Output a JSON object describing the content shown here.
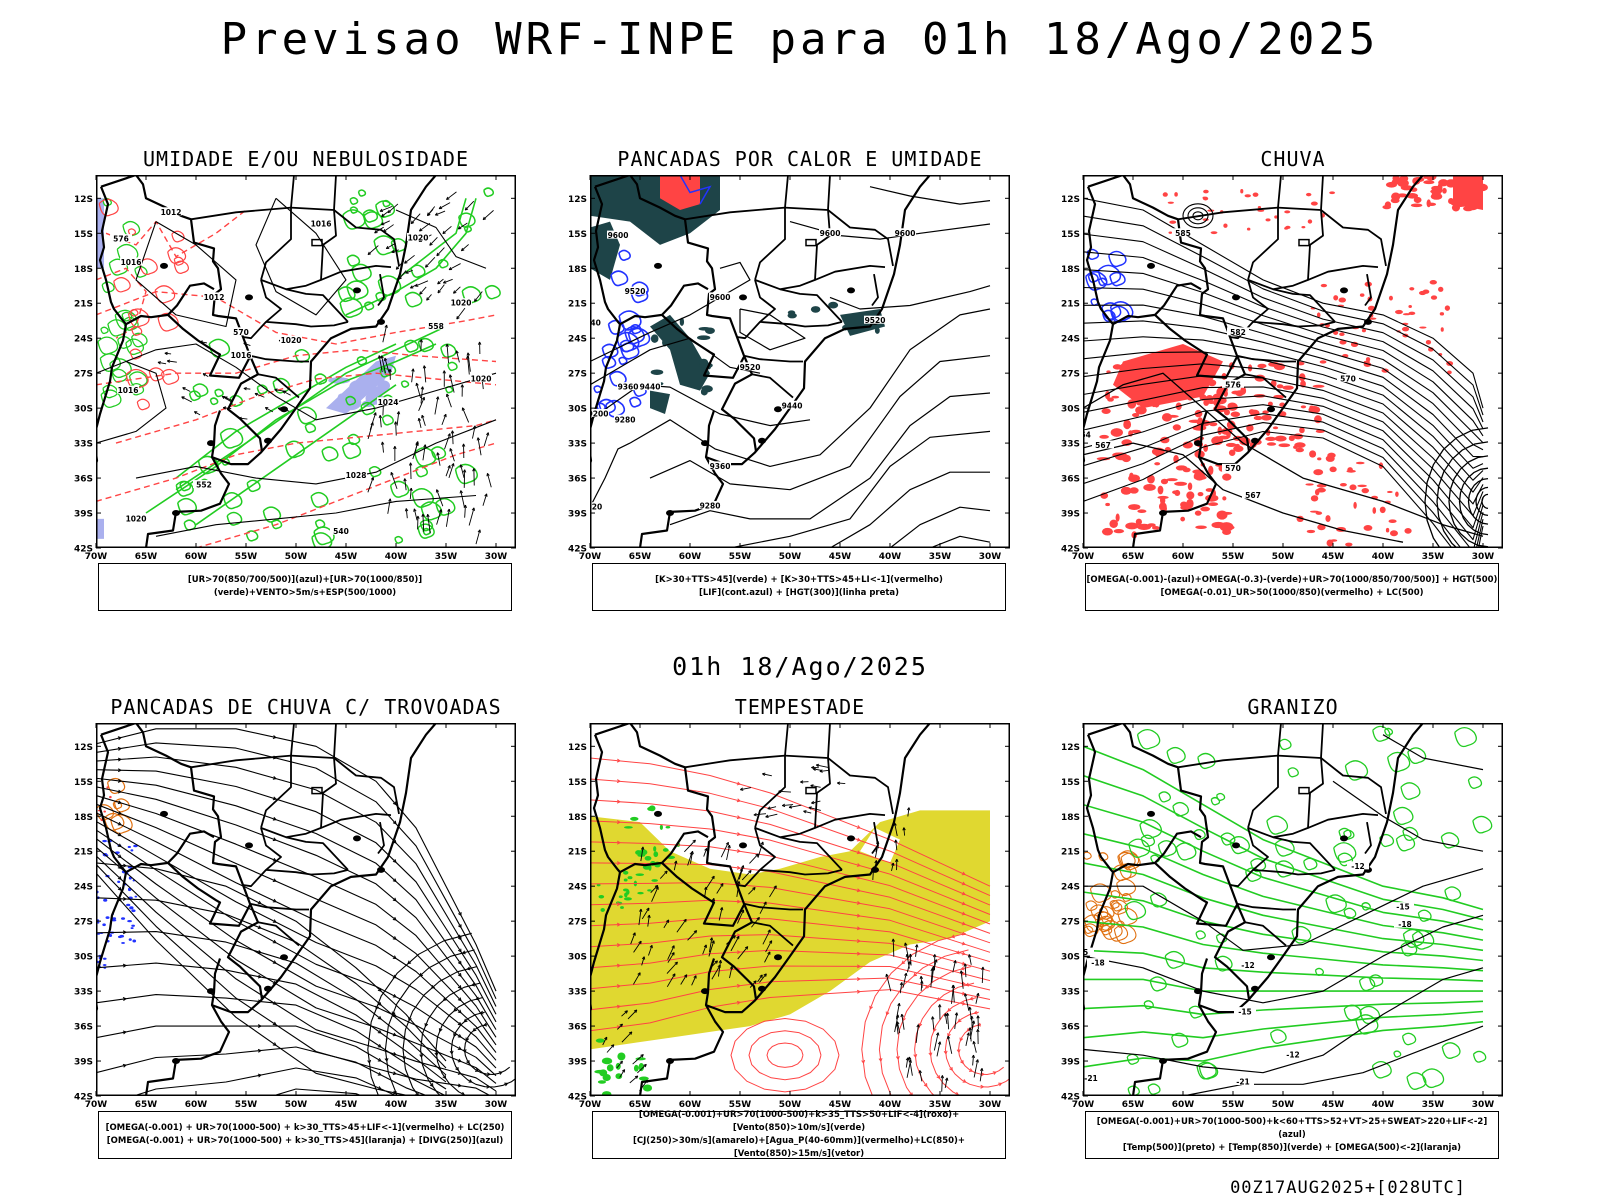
{
  "title": "Previsao WRF-INPE  para 01h 18/Ago/2025",
  "mid_title": "01h 18/Ago/2025",
  "footer": "00Z17AUG2025+[028UTC]",
  "axes": {
    "lat": [
      "12S",
      "15S",
      "18S",
      "21S",
      "24S",
      "27S",
      "30S",
      "33S",
      "36S",
      "39S",
      "42S"
    ],
    "lon": [
      "70W",
      "65W",
      "60W",
      "55W",
      "50W",
      "45W",
      "40W",
      "35W",
      "30W"
    ]
  },
  "colors": {
    "green": "#22cc22",
    "red": "#ff4444",
    "blue": "#2233ff",
    "lavender": "#aab0ee",
    "darkteal": "#1e4448",
    "yellow": "#e0d830",
    "orange": "#e07010"
  },
  "panels": [
    {
      "id": "umidade",
      "title": "UMIDADE E/OU NEBULOSIDADE",
      "legend": [
        "[UR>70(850/700/500)](azul)+[UR>70(1000/850)](verde)+VENTO>5m/s+ESP(500/1000)"
      ],
      "labels": [
        {
          "t": "1012",
          "lon": -62.5,
          "lat": -13.2
        },
        {
          "t": "1016",
          "lon": -47.5,
          "lat": -14.2
        },
        {
          "t": "1020",
          "lon": -37.8,
          "lat": -15.4
        },
        {
          "t": "1016",
          "lon": -66.5,
          "lat": -17.5
        },
        {
          "t": "1012",
          "lon": -58.2,
          "lat": -20.5
        },
        {
          "t": "1020",
          "lon": -33.5,
          "lat": -21.0
        },
        {
          "t": "1016",
          "lon": -55.5,
          "lat": -25.5
        },
        {
          "t": "1020",
          "lon": -50.5,
          "lat": -24.2
        },
        {
          "t": "1024",
          "lon": -40.8,
          "lat": -29.5
        },
        {
          "t": "1016",
          "lon": -66.8,
          "lat": -28.5
        },
        {
          "t": "1028",
          "lon": -44.0,
          "lat": -35.8
        },
        {
          "t": "1020",
          "lon": -66.0,
          "lat": -39.5
        },
        {
          "t": "1020",
          "lon": -31.5,
          "lat": -27.5
        },
        {
          "t": "576",
          "lon": -67.5,
          "lat": -15.5
        },
        {
          "t": "570",
          "lon": -55.5,
          "lat": -23.5
        },
        {
          "t": "558",
          "lon": -36.0,
          "lat": -23.0
        },
        {
          "t": "540",
          "lon": -45.5,
          "lat": -40.6
        },
        {
          "t": "552",
          "lon": -59.2,
          "lat": -36.6
        }
      ]
    },
    {
      "id": "pancadas-calor",
      "title": "PANCADAS POR CALOR E UMIDADE",
      "legend": [
        "[K>30+TTS>45](verde) + [K>30+TTS>45+LI<-1](vermelho)",
        "[LIF](cont.azul) + [HGT(300)](linha preta)"
      ],
      "labels": [
        {
          "t": "9600",
          "lon": -67.2,
          "lat": -15.2
        },
        {
          "t": "9600",
          "lon": -46.0,
          "lat": -15.0
        },
        {
          "t": "9600",
          "lon": -38.5,
          "lat": -15.0
        },
        {
          "t": "9520",
          "lon": -65.5,
          "lat": -20.0
        },
        {
          "t": "9600",
          "lon": -57.0,
          "lat": -20.5
        },
        {
          "t": "9520",
          "lon": -41.5,
          "lat": -22.5
        },
        {
          "t": "9520",
          "lon": -54.0,
          "lat": -26.5
        },
        {
          "t": "9440",
          "lon": -64.0,
          "lat": -28.2
        },
        {
          "t": "9360",
          "lon": -66.2,
          "lat": -28.2
        },
        {
          "t": "9440",
          "lon": -49.8,
          "lat": -29.8
        },
        {
          "t": "9280",
          "lon": -66.5,
          "lat": -31.0
        },
        {
          "t": "9200",
          "lon": -69.2,
          "lat": -30.5
        },
        {
          "t": "9360",
          "lon": -57.0,
          "lat": -35.0
        },
        {
          "t": "9280",
          "lon": -58.0,
          "lat": -38.4
        },
        {
          "t": "20",
          "lon": -69.3,
          "lat": -38.5
        },
        {
          "t": "440",
          "lon": -69.7,
          "lat": -22.7
        }
      ]
    },
    {
      "id": "chuva",
      "title": "CHUVA",
      "legend": [
        "[OMEGA(-0.001)-(azul)+OMEGA(-0.3)-(verde)+UR>70(1000/850/700/500)] + HGT(500)",
        "[OMEGA(-0.01)_UR>50(1000/850)(vermelho) + LC(500)"
      ],
      "labels": [
        {
          "t": "585",
          "lon": -60.0,
          "lat": -15.0
        },
        {
          "t": "582",
          "lon": -54.5,
          "lat": -23.5
        },
        {
          "t": "576",
          "lon": -55.0,
          "lat": -28.0
        },
        {
          "t": "570",
          "lon": -43.5,
          "lat": -27.5
        },
        {
          "t": "570",
          "lon": -55.0,
          "lat": -35.2
        },
        {
          "t": "567",
          "lon": -53.0,
          "lat": -37.5
        },
        {
          "t": "564",
          "lon": -70.0,
          "lat": -32.3
        },
        {
          "t": "567",
          "lon": -68.0,
          "lat": -33.2
        }
      ]
    },
    {
      "id": "pancadas-trovoadas",
      "title": "PANCADAS DE CHUVA C/ TROVOADAS",
      "legend": [
        "[OMEGA(-0.001) + UR>70(1000-500) + k>30_TTS>45+LIF<-1](vermelho) + LC(250)",
        "[OMEGA(-0.001) + UR>70(1000-500) + k>30_TTS>45](laranja) + [DIVG(250)](azul)"
      ],
      "labels": []
    },
    {
      "id": "tempestade",
      "title": "TEMPESTADE",
      "legend": [
        "[OMEGA(-0.001)+UR>70(1000-500)+k>35_TTS>50+LIF<-4](roxo)+[Vento(850)>10m/s](verde)",
        "[CJ(250)>30m/s](amarelo)+[Agua_P(40-60mm)](vermelho)+LC(850)+[Vento(850)>15m/s](vetor)"
      ],
      "labels": []
    },
    {
      "id": "granizo",
      "title": "GRANIZO",
      "legend": [
        "[OMEGA(-0.001)+UR>70(1000-500)+k<60+TTS>52+VT>25+SWEAT>220+LIF<-2](azul)",
        "[Temp(500)](preto) + [Temp(850)](verde) + [OMEGA(500)<-2](laranja)"
      ],
      "labels": [
        {
          "t": "-12",
          "lon": -42.5,
          "lat": -22.3
        },
        {
          "t": "-15",
          "lon": -38.0,
          "lat": -25.8
        },
        {
          "t": "-18",
          "lon": -37.8,
          "lat": -27.3
        },
        {
          "t": "-18",
          "lon": -68.5,
          "lat": -30.6
        },
        {
          "t": "-12",
          "lon": -53.5,
          "lat": -30.8
        },
        {
          "t": "-15",
          "lon": -53.8,
          "lat": -34.8
        },
        {
          "t": "-21",
          "lon": -69.2,
          "lat": -40.5
        },
        {
          "t": "-21",
          "lon": -54.0,
          "lat": -40.8
        },
        {
          "t": "-12",
          "lon": -49.0,
          "lat": -38.5
        },
        {
          "t": "15",
          "lon": -70.0,
          "lat": -29.7
        }
      ]
    }
  ]
}
